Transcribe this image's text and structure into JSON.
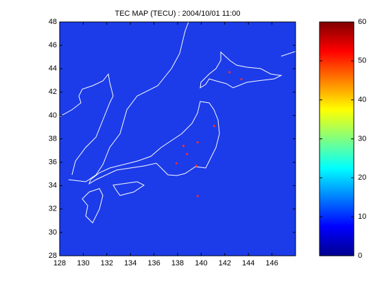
{
  "chart_data": {
    "type": "map",
    "title": "TEC MAP (TECU) : 2004/10/01 11:00",
    "xlim": [
      128,
      148
    ],
    "xticks": [
      128,
      130,
      132,
      134,
      136,
      138,
      140,
      142,
      144,
      146
    ],
    "ylim": [
      28,
      48
    ],
    "yticks": [
      28,
      30,
      32,
      34,
      36,
      38,
      40,
      42,
      44,
      46,
      48
    ],
    "background_color": "#1c3ce9",
    "series": [
      {
        "color": "#ff2a2a",
        "x": [
          142.4,
          143.4,
          141.1,
          139.7,
          138.8,
          137.9,
          139.6,
          138.5,
          139.7
        ],
        "y": [
          43.7,
          43.1,
          39.1,
          37.7,
          36.7,
          35.9,
          35.7,
          37.4,
          33.1
        ]
      }
    ],
    "colorbar": {
      "lim": [
        0,
        60
      ],
      "ticks": [
        0,
        10,
        20,
        30,
        40,
        50,
        60
      ],
      "colors": [
        "#00008f",
        "#0000ff",
        "#0080ff",
        "#00ffff",
        "#80ff80",
        "#ffff00",
        "#ff8000",
        "#ff0000",
        "#800000"
      ]
    }
  }
}
